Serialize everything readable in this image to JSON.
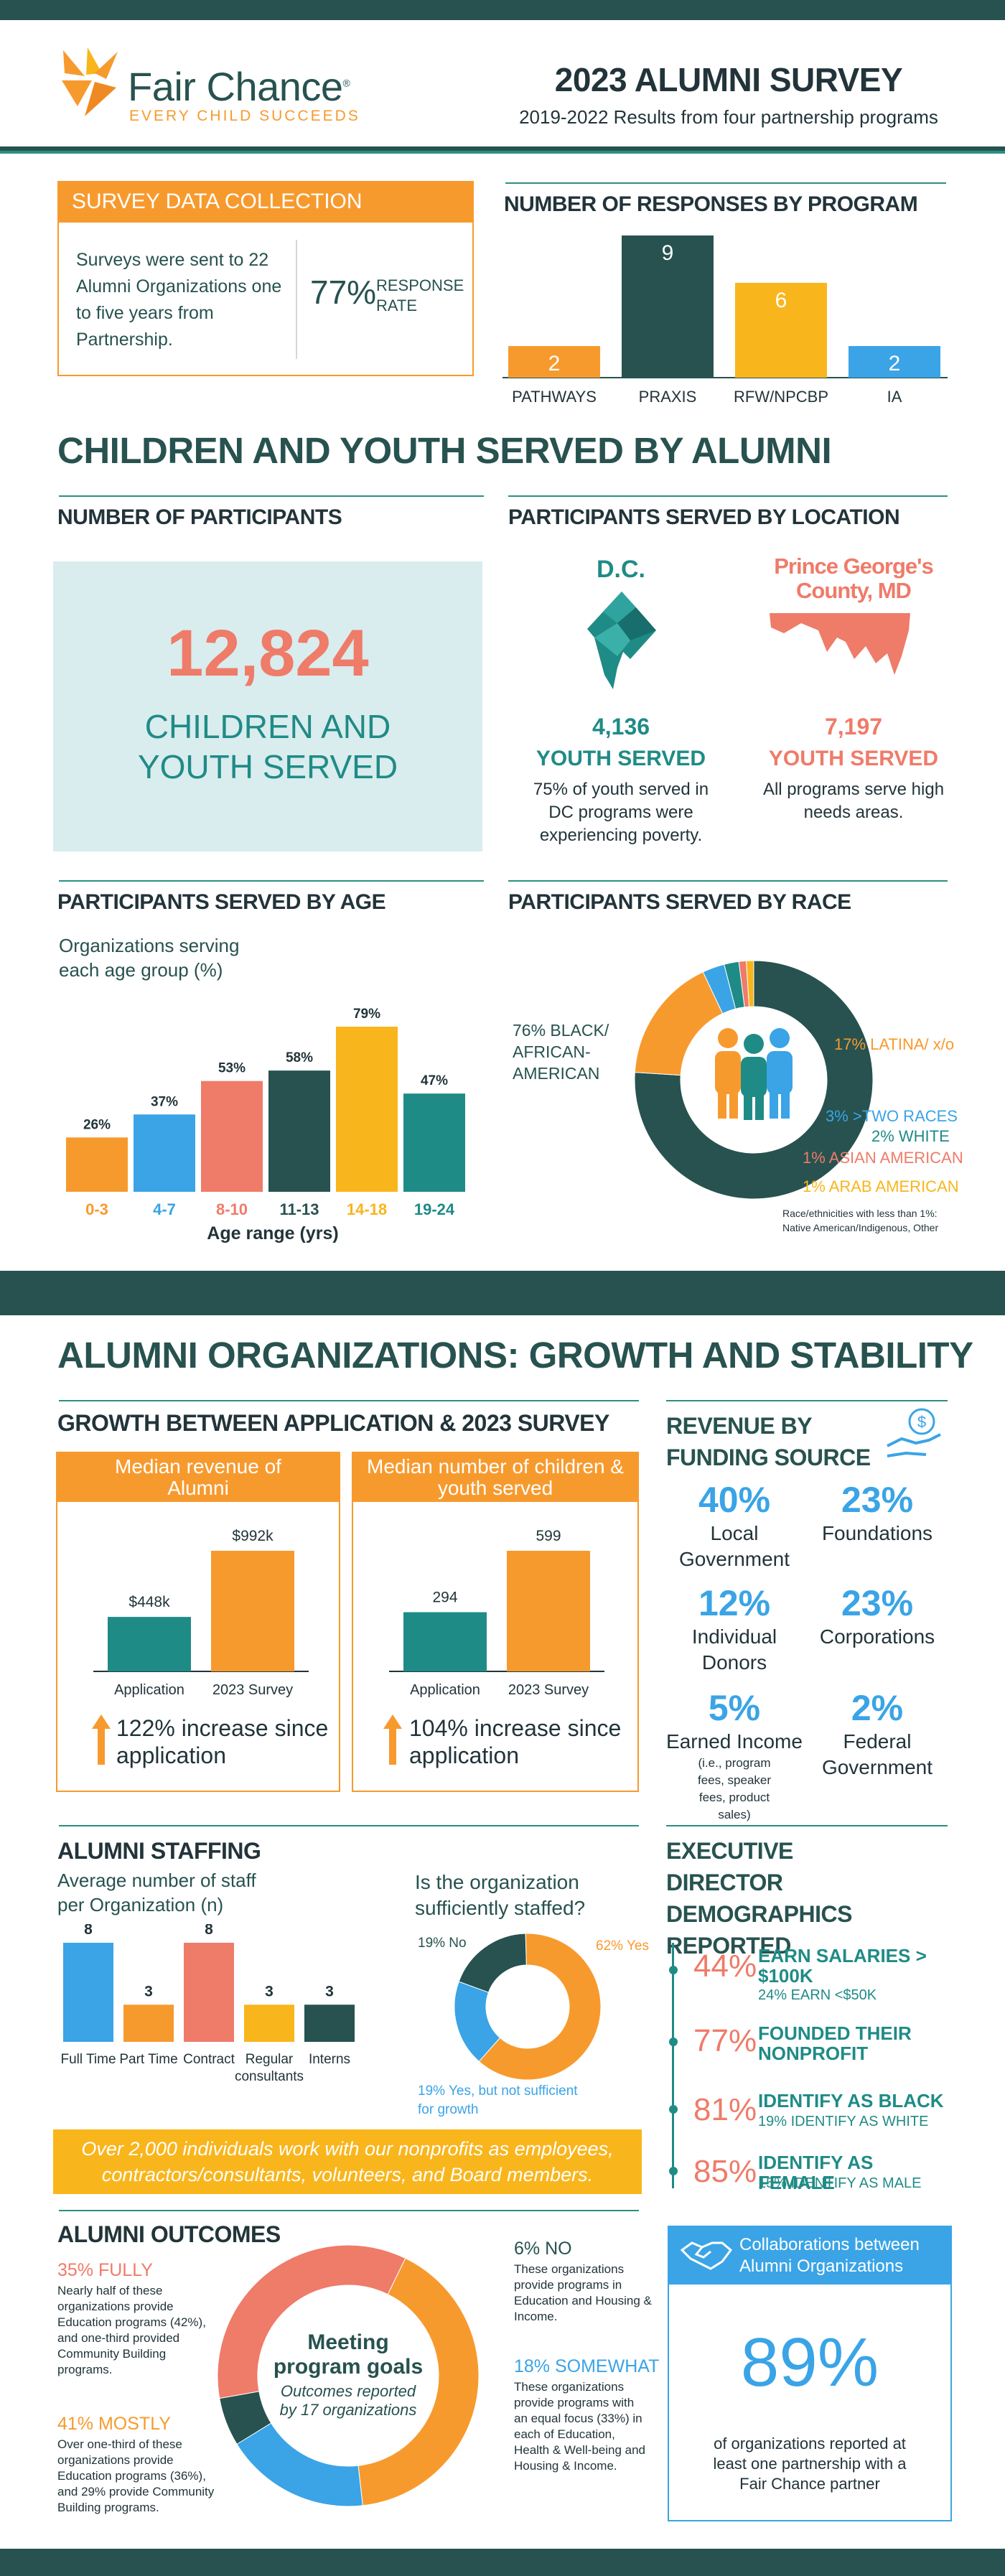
{
  "org": {
    "name": "Fair Chance",
    "tagline": "EVERY CHILD SUCCEEDS",
    "reg": "®"
  },
  "header": {
    "title": "2023 ALUMNI SURVEY",
    "subtitle": "2019-2022 Results from four partnership programs"
  },
  "collection": {
    "title": "SURVEY DATA COLLECTION",
    "text": "Surveys were sent to 22 Alumni Organizations one to five years from Partnership.",
    "rate": "77%",
    "rate_label": "RESPONSE RATE"
  },
  "responses": {
    "title": "NUMBER OF RESPONSES BY PROGRAM",
    "chart_data": {
      "type": "bar",
      "categories": [
        "PATHWAYS",
        "PRAXIS",
        "RFW/NPCBP",
        "IA"
      ],
      "values": [
        2,
        9,
        6,
        2
      ],
      "colors": [
        "#f79a2e",
        "#27524f",
        "#f9b51c",
        "#3aa4e6"
      ]
    }
  },
  "section1": {
    "title": "CHILDREN AND YOUTH SERVED BY ALUMNI"
  },
  "participants": {
    "title": "NUMBER OF PARTICIPANTS",
    "number": "12,824",
    "label": "CHILDREN AND YOUTH SERVED"
  },
  "location": {
    "title": "PARTICIPANTS SERVED BY LOCATION",
    "dc": {
      "name": "D.C.",
      "count": "4,136",
      "label": "YOUTH SERVED",
      "note": "75% of youth served in DC programs were experiencing poverty."
    },
    "pg": {
      "name": "Prince George's County, MD",
      "count": "7,197",
      "label": "YOUTH SERVED",
      "note": "All programs serve high needs areas."
    }
  },
  "age": {
    "title": "PARTICIPANTS SERVED BY AGE",
    "subtitle": "Organizations serving each age group (%)",
    "chart_data": {
      "type": "bar",
      "categories": [
        "0-3",
        "4-7",
        "8-10",
        "11-13",
        "14-18",
        "19-24"
      ],
      "values": [
        26,
        37,
        53,
        58,
        79,
        47
      ],
      "value_labels": [
        "26%",
        "37%",
        "53%",
        "58%",
        "79%",
        "47%"
      ],
      "xlabel": "Age range (yrs)",
      "colors": [
        "#f79a2e",
        "#3aa4e6",
        "#ef7b69",
        "#27524f",
        "#f9b51c",
        "#1f8b86"
      ]
    }
  },
  "race": {
    "title": "PARTICIPANTS SERVED BY RACE",
    "chart_data": {
      "type": "pie",
      "labels": [
        "BLACK/ AFRICAN-AMERICAN",
        "LATINA/ x/o",
        ">TWO RACES",
        "WHITE",
        "ASIAN AMERICAN",
        "ARAB AMERICAN"
      ],
      "values": [
        76,
        17,
        3,
        2,
        1,
        1
      ],
      "colors": [
        "#27524f",
        "#f79a2e",
        "#3aa4e6",
        "#1f8b86",
        "#ef7b69",
        "#f9b51c"
      ]
    },
    "labels": {
      "black": "76% BLACK/ AFRICAN- AMERICAN",
      "latina": "17% LATINA/ x/o",
      "two": "3% >TWO RACES",
      "white": "2% WHITE",
      "asian": "1% ASIAN AMERICAN",
      "arab": "1% ARAB AMERICAN"
    },
    "note": "Race/ethnicities with less than 1%: Native American/Indigenous, Other"
  },
  "section2": {
    "title": "ALUMNI ORGANIZATIONS: GROWTH AND STABILITY"
  },
  "growth": {
    "title": "GROWTH BETWEEN APPLICATION & 2023 SURVEY",
    "revenue": {
      "header": "Median revenue of Alumni",
      "chart_data": {
        "type": "bar",
        "categories": [
          "Application",
          "2023 Survey"
        ],
        "values": [
          448,
          992
        ],
        "value_labels": [
          "$448k",
          "$992k"
        ],
        "unit": "$k"
      },
      "increase": "122% increase since application"
    },
    "children": {
      "header": "Median number of children & youth served",
      "chart_data": {
        "type": "bar",
        "categories": [
          "Application",
          "2023 Survey"
        ],
        "values": [
          294,
          599
        ],
        "value_labels": [
          "294",
          "599"
        ]
      },
      "increase": "104% increase since application"
    }
  },
  "funding": {
    "title": "REVENUE BY FUNDING SOURCE",
    "icon": "money-hand-icon",
    "items": [
      {
        "pct": "40%",
        "label": "Local Government",
        "note": ""
      },
      {
        "pct": "23%",
        "label": "Foundations",
        "note": ""
      },
      {
        "pct": "12%",
        "label": "Individual Donors",
        "note": ""
      },
      {
        "pct": "23%",
        "label": "Corporations",
        "note": ""
      },
      {
        "pct": "5%",
        "label": "Earned Income",
        "note": "(i.e., program fees, speaker fees, product sales)"
      },
      {
        "pct": "2%",
        "label": "Federal Government",
        "note": ""
      }
    ]
  },
  "staffing": {
    "title": "ALUMNI STAFFING",
    "subtitle": "Average number of staff per Organization (n)",
    "chart_data": {
      "type": "bar",
      "categories": [
        "Full Time",
        "Part Time",
        "Contract",
        "Regular consultants",
        "Interns"
      ],
      "values": [
        8,
        3,
        8,
        3,
        3
      ],
      "colors": [
        "#3aa4e6",
        "#f79a2e",
        "#ef7b69",
        "#f9b51c",
        "#27524f"
      ]
    },
    "question": "Is the organization sufficiently staffed?",
    "donut": {
      "type": "pie",
      "labels": [
        "No",
        "Yes",
        "Yes, but not sufficient for growth"
      ],
      "values": [
        19,
        62,
        19
      ],
      "colors": [
        "#27524f",
        "#f79a2e",
        "#3aa4e6"
      ]
    },
    "donut_labels": {
      "no": "19% No",
      "yes": "62% Yes",
      "partial": "19%  Yes, but not sufficient for growth"
    },
    "banner": "Over 2,000 individuals work with our nonprofits as employees, contractors/consultants, volunteers, and Board members."
  },
  "ed": {
    "title": "EXECUTIVE DIRECTOR DEMOGRAPHICS REPORTED",
    "items": [
      {
        "pct": "44%",
        "head": "EARN SALARIES > $100K",
        "sub": "24% EARN <$50K"
      },
      {
        "pct": "77%",
        "head": "FOUNDED THEIR NONPROFIT",
        "sub": ""
      },
      {
        "pct": "81%",
        "head": "IDENTIFY AS BLACK",
        "sub": "19% IDENTIFY AS WHITE"
      },
      {
        "pct": "85%",
        "head": "IDENTIFY AS FEMALE",
        "sub": "15% IDENTIFY AS MALE"
      }
    ]
  },
  "outcomes": {
    "title": "ALUMNI OUTCOMES",
    "center_title": "Meeting program goals",
    "center_sub": "Outcomes reported by 17 organizations",
    "chart_data": {
      "type": "pie",
      "labels": [
        "FULLY",
        "MOSTLY",
        "SOMEWHAT",
        "NO"
      ],
      "values": [
        35,
        41,
        18,
        6
      ],
      "colors": [
        "#ef7b69",
        "#f79a2e",
        "#3aa4e6",
        "#27524f"
      ]
    },
    "fully": {
      "head": "35% FULLY",
      "text": "Nearly half of these organizations provide Education programs (42%), and one-third provided Community Building programs."
    },
    "mostly": {
      "head": "41% MOSTLY",
      "text": "Over one-third of these organizations provide Education programs (36%), and 29% provide Community Building programs."
    },
    "no": {
      "head": "6% NO",
      "text": "These organizations provide programs in Education and Housing & Income."
    },
    "somewhat": {
      "head": "18% SOMEWHAT",
      "text": "These organizations provide programs with an equal focus (33%) in each of Education, Health & Well-being and Housing & Income."
    }
  },
  "collab": {
    "header": "Collaborations between Alumni Organizations",
    "pct": "89%",
    "text": "of organizations reported at least one partnership with a Fair Chance partner"
  }
}
